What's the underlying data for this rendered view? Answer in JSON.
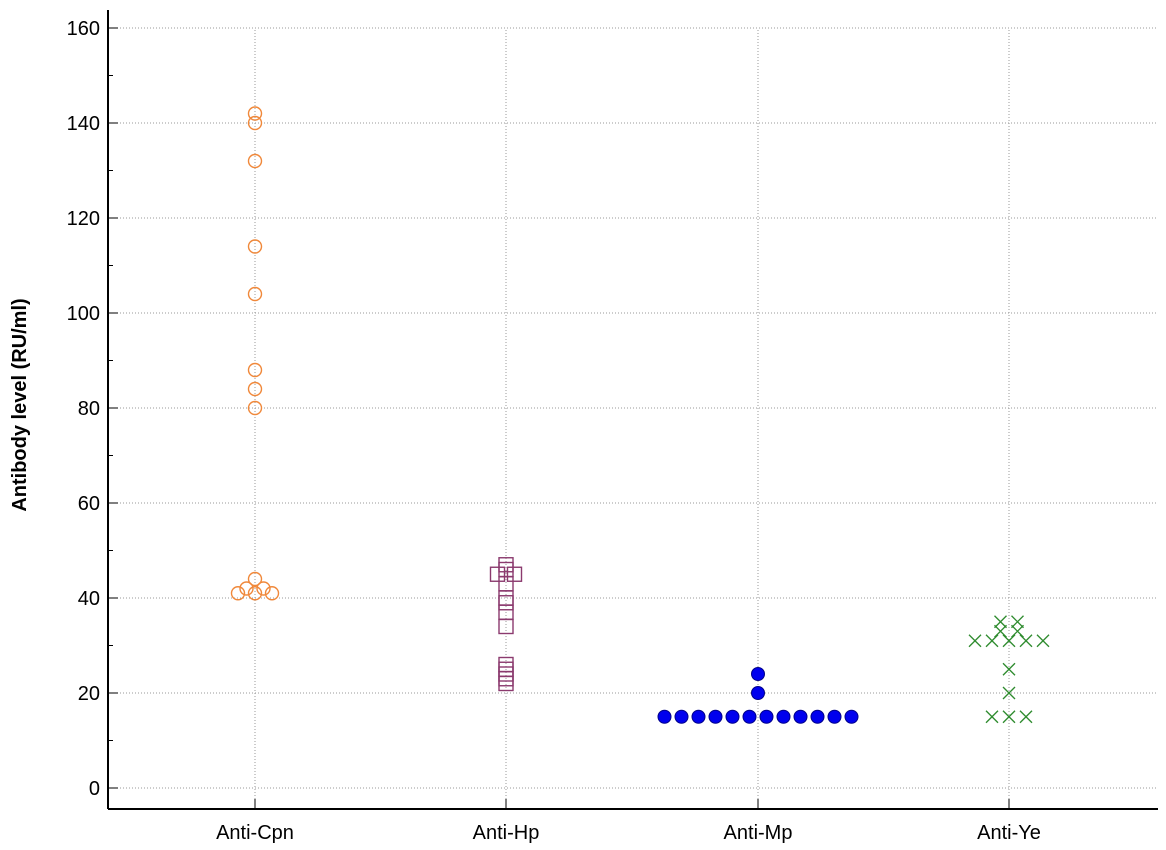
{
  "chart_data": {
    "type": "scatter",
    "ylabel": "Antibody level (RU/ml)",
    "xlabel": "",
    "ylim": [
      0,
      160
    ],
    "y_ticks": [
      "0",
      "20",
      "40",
      "60",
      "80",
      "100",
      "120",
      "140",
      "160"
    ],
    "categories": [
      "Anti-Cpn",
      "Anti-Hp",
      "Anti-Mp",
      "Anti-Ye"
    ],
    "grid": true,
    "series": [
      {
        "category": "Anti-Cpn",
        "marker": "open-circle",
        "color": "#f0883a",
        "values": [
          142,
          140,
          132,
          114,
          104,
          88,
          84,
          80,
          44,
          42,
          42,
          41,
          41,
          41
        ]
      },
      {
        "category": "Anti-Hp",
        "marker": "open-square",
        "color": "#8b3a6e",
        "values": [
          47,
          46,
          45,
          45,
          43,
          40,
          39,
          37,
          34,
          26,
          25,
          24,
          23,
          22
        ]
      },
      {
        "category": "Anti-Mp",
        "marker": "filled-circle",
        "color": "#0000ee",
        "values": [
          24,
          20,
          15,
          15,
          15,
          15,
          15,
          15,
          15,
          15,
          15,
          15,
          15,
          15
        ]
      },
      {
        "category": "Anti-Ye",
        "marker": "cross",
        "color": "#2e8b2e",
        "values": [
          35,
          35,
          33,
          33,
          31,
          31,
          31,
          31,
          31,
          25,
          20,
          15,
          15,
          15
        ]
      }
    ]
  }
}
